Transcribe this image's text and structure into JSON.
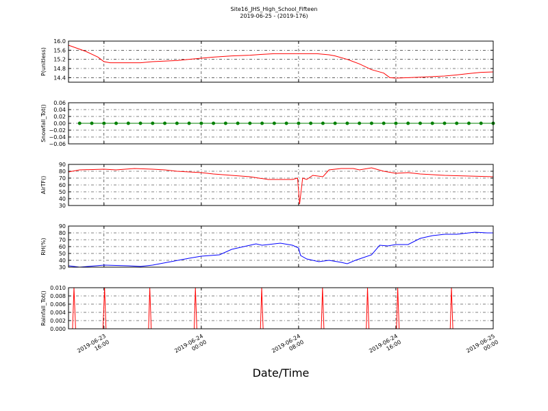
{
  "chart_data": {
    "type": "line",
    "title": "Site16_JHS_High_School_Fifteen",
    "subtitle": "2019-06-25 - (2019-176)",
    "xlabel": "Date/Time",
    "xlim": [
      "2019-06-23 13:05",
      "2019-06-25 00:00"
    ],
    "xticks": [
      {
        "value": "2019-06-23 16:00",
        "label": "2019-06-23\n16:00"
      },
      {
        "value": "2019-06-24 00:00",
        "label": "2019-06-24\n00:00"
      },
      {
        "value": "2019-06-24 08:00",
        "label": "2019-06-24\n08:00"
      },
      {
        "value": "2019-06-24 16:00",
        "label": "2019-06-24\n16:00"
      },
      {
        "value": "2019-06-25 00:00",
        "label": "2019-06-25\n00:00"
      }
    ],
    "grid": true,
    "panels": [
      {
        "ylabel": "P(unitless)",
        "ylim": [
          14.2,
          16.0
        ],
        "yticks": [
          {
            "value": 14.4,
            "label": "14.4"
          },
          {
            "value": 14.8,
            "label": "14.8"
          },
          {
            "value": 15.2,
            "label": "15.2"
          },
          {
            "value": 15.6,
            "label": "15.6"
          },
          {
            "value": 16,
            "label": "16.0"
          }
        ],
        "x": [
          "2019-06-23 13:05",
          "2019-06-23 14:30",
          "2019-06-23 15:30",
          "2019-06-23 16:00",
          "2019-06-23 16:30",
          "2019-06-23 19:00",
          "2019-06-23 20:00",
          "2019-06-23 22:00",
          "2019-06-23 23:00",
          "2019-06-24 00:00",
          "2019-06-24 01:00",
          "2019-06-24 02:30",
          "2019-06-24 04:00",
          "2019-06-24 05:00",
          "2019-06-24 06:00",
          "2019-06-24 09:30",
          "2019-06-24 10:30",
          "2019-06-24 11:00",
          "2019-06-24 12:00",
          "2019-06-24 13:00",
          "2019-06-24 14:00",
          "2019-06-24 15:00",
          "2019-06-24 15:30",
          "2019-06-24 16:00",
          "2019-06-24 17:00",
          "2019-06-24 18:00",
          "2019-06-24 20:00",
          "2019-06-24 21:00",
          "2019-06-24 22:00",
          "2019-06-24 23:00",
          "2019-06-25 00:00"
        ],
        "series": [
          {
            "color": "#ff0000",
            "marker": false,
            "values": [
              15.82,
              15.55,
              15.3,
              15.1,
              15.05,
              15.05,
              15.1,
              15.15,
              15.2,
              15.25,
              15.3,
              15.35,
              15.38,
              15.42,
              15.45,
              15.45,
              15.4,
              15.35,
              15.2,
              15.0,
              14.75,
              14.6,
              14.4,
              14.38,
              14.4,
              14.42,
              14.47,
              14.52,
              14.58,
              14.63,
              14.65
            ]
          }
        ]
      },
      {
        "ylabel": "Snowfall_Tot()",
        "ylim": [
          -0.06,
          0.06
        ],
        "yticks": [
          {
            "value": -0.06,
            "label": "−0.06"
          },
          {
            "value": -0.04,
            "label": "−0.04"
          },
          {
            "value": -0.02,
            "label": "−0.02"
          },
          {
            "value": 0,
            "label": "0.00"
          },
          {
            "value": 0.02,
            "label": "0.02"
          },
          {
            "value": 0.04,
            "label": "0.04"
          },
          {
            "value": 0.06,
            "label": "0.06"
          }
        ],
        "x": [
          "2019-06-23 14:00",
          "2019-06-23 15:00",
          "2019-06-23 16:00",
          "2019-06-23 17:00",
          "2019-06-23 18:00",
          "2019-06-23 19:00",
          "2019-06-23 20:00",
          "2019-06-23 21:00",
          "2019-06-23 22:00",
          "2019-06-23 23:00",
          "2019-06-24 00:00",
          "2019-06-24 01:00",
          "2019-06-24 02:00",
          "2019-06-24 03:00",
          "2019-06-24 04:00",
          "2019-06-24 05:00",
          "2019-06-24 06:00",
          "2019-06-24 07:00",
          "2019-06-24 08:00",
          "2019-06-24 09:00",
          "2019-06-24 10:00",
          "2019-06-24 11:00",
          "2019-06-24 12:00",
          "2019-06-24 13:00",
          "2019-06-24 14:00",
          "2019-06-24 15:00",
          "2019-06-24 16:00",
          "2019-06-24 17:00",
          "2019-06-24 18:00",
          "2019-06-24 19:00",
          "2019-06-24 20:00",
          "2019-06-24 21:00",
          "2019-06-24 22:00",
          "2019-06-24 23:00",
          "2019-06-25 00:00"
        ],
        "series": [
          {
            "color": "#008000",
            "marker": true,
            "values": [
              0,
              0,
              0,
              0,
              0,
              0,
              0,
              0,
              0,
              0,
              0,
              0,
              0,
              0,
              0,
              0,
              0,
              0,
              0,
              0,
              0,
              0,
              0,
              0,
              0,
              0,
              0,
              0,
              0,
              0,
              0,
              0,
              0,
              0,
              0
            ]
          }
        ]
      },
      {
        "ylabel": "AirTF()",
        "ylim": [
          30,
          90
        ],
        "yticks": [
          30,
          40,
          50,
          60,
          70,
          80,
          90
        ],
        "x": [
          "2019-06-23 13:05",
          "2019-06-23 14:00",
          "2019-06-23 16:00",
          "2019-06-23 17:00",
          "2019-06-23 18:30",
          "2019-06-23 20:00",
          "2019-06-23 21:00",
          "2019-06-23 22:00",
          "2019-06-24 00:00",
          "2019-06-24 01:00",
          "2019-06-24 02:30",
          "2019-06-24 04:00",
          "2019-06-24 05:30",
          "2019-06-24 07:30",
          "2019-06-24 07:55",
          "2019-06-24 08:05",
          "2019-06-24 08:20",
          "2019-06-24 08:40",
          "2019-06-24 09:10",
          "2019-06-24 10:00",
          "2019-06-24 10:30",
          "2019-06-24 11:30",
          "2019-06-24 12:30",
          "2019-06-24 13:00",
          "2019-06-24 14:00",
          "2019-06-24 15:00",
          "2019-06-24 16:00",
          "2019-06-24 17:00",
          "2019-06-24 18:00",
          "2019-06-24 20:00",
          "2019-06-24 22:00",
          "2019-06-25 00:00"
        ],
        "series": [
          {
            "color": "#ff0000",
            "marker": false,
            "values": [
              79,
              82,
              83,
              82,
              84,
              83,
              82,
              80,
              78,
              76,
              74,
              72,
              68,
              68,
              70,
              32,
              70,
              68,
              74,
              72,
              82,
              84,
              84,
              82,
              85,
              80,
              77,
              78,
              76,
              74,
              73,
              72
            ]
          }
        ]
      },
      {
        "ylabel": "RH(%)",
        "ylim": [
          30,
          90
        ],
        "yticks": [
          30,
          40,
          50,
          60,
          70,
          80,
          90
        ],
        "x": [
          "2019-06-23 13:05",
          "2019-06-23 14:00",
          "2019-06-23 16:00",
          "2019-06-23 18:00",
          "2019-06-23 19:00",
          "2019-06-23 20:00",
          "2019-06-23 21:30",
          "2019-06-23 23:00",
          "2019-06-24 00:00",
          "2019-06-24 01:30",
          "2019-06-24 02:30",
          "2019-06-24 03:30",
          "2019-06-24 04:30",
          "2019-06-24 05:00",
          "2019-06-24 06:30",
          "2019-06-24 07:30",
          "2019-06-24 08:00",
          "2019-06-24 08:10",
          "2019-06-24 08:40",
          "2019-06-24 09:40",
          "2019-06-24 10:30",
          "2019-06-24 11:30",
          "2019-06-24 12:00",
          "2019-06-24 12:40",
          "2019-06-24 13:10",
          "2019-06-24 14:00",
          "2019-06-24 14:40",
          "2019-06-24 15:20",
          "2019-06-24 16:00",
          "2019-06-24 17:00",
          "2019-06-24 18:00",
          "2019-06-24 19:00",
          "2019-06-24 20:00",
          "2019-06-24 21:00",
          "2019-06-24 22:30",
          "2019-06-24 23:30",
          "2019-06-25 00:00"
        ],
        "series": [
          {
            "color": "#0000ff",
            "marker": false,
            "values": [
              32,
              30,
              33,
              32,
              31,
              33,
              38,
              43,
              46,
              48,
              56,
              60,
              64,
              62,
              65,
              62,
              58,
              47,
              42,
              38,
              40,
              37,
              35,
              40,
              43,
              48,
              62,
              61,
              63,
              63,
              72,
              76,
              78,
              78,
              81,
              80,
              80
            ]
          }
        ]
      },
      {
        "ylabel": "Rainfall_Tot()",
        "ylim": [
          0,
          0.01
        ],
        "yticks": [
          {
            "value": 0,
            "label": "0.000"
          },
          {
            "value": 0.002,
            "label": "0.002"
          },
          {
            "value": 0.004,
            "label": "0.004"
          },
          {
            "value": 0.006,
            "label": "0.006"
          },
          {
            "value": 0.008,
            "label": "0.008"
          },
          {
            "value": 0.01,
            "label": "0.010"
          }
        ],
        "x": [
          "2019-06-23 13:25",
          "2019-06-23 13:32",
          "2019-06-23 13:40",
          "2019-06-23 15:55",
          "2019-06-23 16:03",
          "2019-06-23 16:10",
          "2019-06-23 19:40",
          "2019-06-23 19:46",
          "2019-06-23 19:53",
          "2019-06-23 23:25",
          "2019-06-23 23:31",
          "2019-06-23 23:38",
          "2019-06-24 04:52",
          "2019-06-24 04:58",
          "2019-06-24 05:05",
          "2019-06-24 09:52",
          "2019-06-24 09:58",
          "2019-06-24 10:05",
          "2019-06-24 13:34",
          "2019-06-24 13:40",
          "2019-06-24 13:47",
          "2019-06-24 16:03",
          "2019-06-24 16:09",
          "2019-06-24 16:16",
          "2019-06-24 20:28",
          "2019-06-24 20:34",
          "2019-06-24 20:41",
          "2019-06-25 00:00"
        ],
        "series": [
          {
            "color": "#ff0000",
            "marker": false,
            "values": [
              0,
              0.01,
              0,
              0,
              0.01,
              0,
              0,
              0.01,
              0,
              0,
              0.01,
              0,
              0,
              0.01,
              0,
              0,
              0.01,
              0,
              0,
              0.01,
              0,
              0,
              0.01,
              0,
              0,
              0.01,
              0,
              0
            ]
          }
        ]
      }
    ]
  }
}
